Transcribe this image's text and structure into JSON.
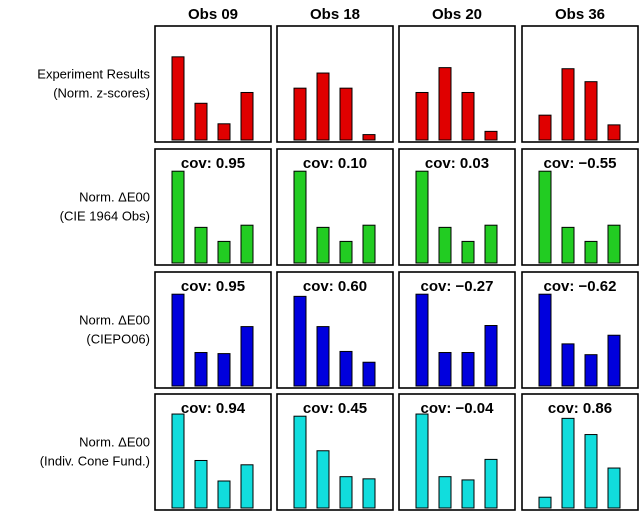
{
  "chart_data": {
    "type": "bar",
    "columns": [
      "Obs 09",
      "Obs 18",
      "Obs 20",
      "Obs 36"
    ],
    "rows": [
      {
        "label_lines": [
          "Experiment Results",
          "(Norm. z-scores)"
        ],
        "color": "#e00000",
        "panels": [
          {
            "cov": null,
            "values": [
              0.77,
              0.34,
              0.15,
              0.44
            ]
          },
          {
            "cov": null,
            "values": [
              0.48,
              0.62,
              0.48,
              0.05
            ]
          },
          {
            "cov": null,
            "values": [
              0.44,
              0.67,
              0.44,
              0.08
            ]
          },
          {
            "cov": null,
            "values": [
              0.23,
              0.66,
              0.54,
              0.14
            ]
          }
        ]
      },
      {
        "label_lines": [
          "Norm. ΔE00",
          "(CIE 1964 Obs)"
        ],
        "color": "#22cc22",
        "panels": [
          {
            "cov": "cov: 0.95",
            "values": [
              0.85,
              0.33,
              0.2,
              0.35
            ]
          },
          {
            "cov": "cov: 0.10",
            "values": [
              0.85,
              0.33,
              0.2,
              0.35
            ]
          },
          {
            "cov": "cov: 0.03",
            "values": [
              0.85,
              0.33,
              0.2,
              0.35
            ]
          },
          {
            "cov": "cov: −0.55",
            "values": [
              0.85,
              0.33,
              0.2,
              0.35
            ]
          }
        ]
      },
      {
        "label_lines": [
          "Norm. ΔE00",
          "(CIEPO06)"
        ],
        "color": "#0000dd",
        "panels": [
          {
            "cov": "cov: 0.95",
            "values": [
              0.85,
              0.31,
              0.3,
              0.55
            ]
          },
          {
            "cov": "cov: 0.60",
            "values": [
              0.83,
              0.55,
              0.32,
              0.22
            ]
          },
          {
            "cov": "cov: −0.27",
            "values": [
              0.85,
              0.31,
              0.31,
              0.56
            ]
          },
          {
            "cov": "cov: −0.62",
            "values": [
              0.85,
              0.39,
              0.29,
              0.47
            ]
          }
        ]
      },
      {
        "label_lines": [
          "Norm. ΔE00",
          "(Indiv. Cone Fund.)"
        ],
        "color": "#11dddd",
        "panels": [
          {
            "cov": "cov: 0.94",
            "values": [
              0.87,
              0.44,
              0.25,
              0.4
            ]
          },
          {
            "cov": "cov: 0.45",
            "values": [
              0.85,
              0.53,
              0.29,
              0.27
            ]
          },
          {
            "cov": "cov: −0.04",
            "values": [
              0.87,
              0.29,
              0.26,
              0.45
            ]
          },
          {
            "cov": "cov: 0.86",
            "values": [
              0.1,
              0.83,
              0.68,
              0.37
            ]
          }
        ]
      }
    ],
    "ylim": [
      0,
      1
    ],
    "grid": false,
    "legend": "none"
  }
}
